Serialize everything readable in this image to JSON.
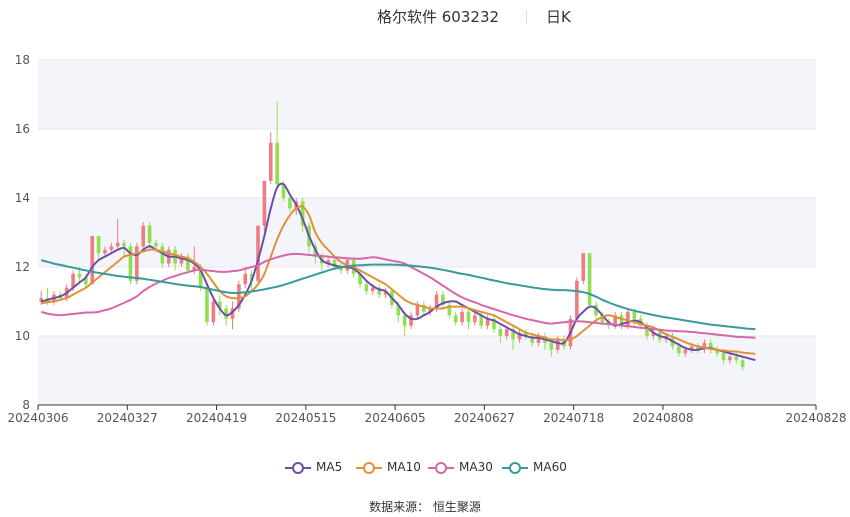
{
  "header": {
    "stock": "格尔软件 603232",
    "period": "日K"
  },
  "footer": {
    "source": "数据来源： 恒生聚源"
  },
  "legend": [
    {
      "name": "MA5",
      "color": "#6a4fa8"
    },
    {
      "name": "MA10",
      "color": "#e0913a"
    },
    {
      "name": "MA30",
      "color": "#d667aa"
    },
    {
      "name": "MA60",
      "color": "#3a9999"
    }
  ],
  "colors": {
    "up": "#f07c82",
    "down": "#8fe050",
    "band": "#f4f5fa"
  },
  "chart_data": {
    "type": "candlestick",
    "title": "格尔软件 603232",
    "subtitle": "日K",
    "ylim": [
      8,
      18
    ],
    "yticks": [
      8,
      10,
      12,
      14,
      16,
      18
    ],
    "xlim": [
      0,
      122
    ],
    "x_tick_labels": [
      {
        "label": "20240306",
        "index": 0
      },
      {
        "label": "20240327",
        "index": 14
      },
      {
        "label": "20240419",
        "index": 28
      },
      {
        "label": "20240515",
        "index": 42
      },
      {
        "label": "20240605",
        "index": 56
      },
      {
        "label": "20240627",
        "index": 70
      },
      {
        "label": "20240718",
        "index": 84
      },
      {
        "label": "20240808",
        "index": 98
      },
      {
        "label": "20240828",
        "index": 112
      }
    ],
    "candles": [
      [
        11.0,
        11.1,
        11.3,
        10.9
      ],
      [
        11.1,
        11.0,
        11.4,
        10.9
      ],
      [
        11.0,
        11.2,
        11.3,
        10.9
      ],
      [
        11.2,
        11.1,
        11.3,
        11.0
      ],
      [
        11.1,
        11.4,
        11.5,
        11.0
      ],
      [
        11.4,
        11.8,
        11.9,
        11.3
      ],
      [
        11.8,
        11.7,
        12.0,
        11.5
      ],
      [
        11.7,
        11.5,
        11.8,
        11.4
      ],
      [
        11.5,
        12.9,
        12.9,
        11.5
      ],
      [
        12.9,
        12.4,
        12.9,
        12.2
      ],
      [
        12.4,
        12.5,
        12.6,
        12.3
      ],
      [
        12.5,
        12.6,
        12.7,
        12.4
      ],
      [
        12.6,
        12.7,
        13.4,
        12.5
      ],
      [
        12.7,
        12.6,
        12.8,
        12.3
      ],
      [
        12.6,
        11.6,
        12.7,
        11.5
      ],
      [
        11.6,
        12.6,
        12.7,
        11.5
      ],
      [
        12.6,
        13.2,
        13.3,
        12.5
      ],
      [
        13.2,
        12.7,
        13.3,
        12.5
      ],
      [
        12.7,
        12.6,
        12.8,
        12.4
      ],
      [
        12.6,
        12.1,
        12.7,
        12.0
      ],
      [
        12.1,
        12.5,
        12.6,
        12.0
      ],
      [
        12.5,
        12.1,
        12.6,
        11.9
      ],
      [
        12.1,
        12.3,
        12.4,
        12.0
      ],
      [
        12.3,
        11.9,
        12.4,
        11.8
      ],
      [
        11.9,
        12.0,
        12.6,
        11.8
      ],
      [
        12.0,
        11.4,
        12.1,
        11.3
      ],
      [
        11.4,
        10.4,
        11.5,
        10.3
      ],
      [
        10.4,
        11.0,
        11.1,
        10.3
      ],
      [
        11.0,
        10.8,
        11.2,
        10.6
      ],
      [
        10.8,
        10.5,
        10.9,
        10.3
      ],
      [
        10.5,
        10.8,
        11.0,
        10.2
      ],
      [
        10.8,
        11.5,
        11.6,
        10.7
      ],
      [
        11.5,
        11.8,
        12.0,
        11.4
      ],
      [
        11.8,
        11.6,
        11.9,
        11.3
      ],
      [
        11.6,
        13.2,
        13.2,
        11.5
      ],
      [
        13.2,
        14.5,
        14.5,
        13.0
      ],
      [
        14.5,
        15.6,
        15.9,
        14.4
      ],
      [
        15.6,
        14.4,
        16.8,
        14.3
      ],
      [
        14.4,
        14.0,
        14.5,
        13.9
      ],
      [
        14.0,
        13.7,
        14.1,
        13.6
      ],
      [
        13.7,
        13.9,
        14.0,
        13.5
      ],
      [
        13.9,
        13.2,
        14.0,
        13.0
      ],
      [
        13.2,
        12.6,
        13.3,
        12.4
      ],
      [
        12.6,
        12.3,
        12.7,
        12.1
      ],
      [
        12.3,
        12.1,
        12.4,
        11.9
      ],
      [
        12.1,
        12.2,
        12.3,
        12.0
      ],
      [
        12.2,
        12.0,
        12.3,
        11.9
      ],
      [
        12.0,
        11.9,
        12.1,
        11.8
      ],
      [
        11.9,
        12.2,
        12.3,
        11.8
      ],
      [
        12.2,
        11.8,
        12.3,
        11.7
      ],
      [
        11.8,
        11.5,
        11.9,
        11.4
      ],
      [
        11.5,
        11.3,
        11.6,
        11.2
      ],
      [
        11.3,
        11.4,
        11.5,
        11.2
      ],
      [
        11.4,
        11.2,
        11.5,
        11.1
      ],
      [
        11.2,
        11.3,
        11.4,
        11.1
      ],
      [
        11.3,
        10.9,
        11.4,
        10.8
      ],
      [
        10.9,
        10.6,
        11.0,
        10.4
      ],
      [
        10.6,
        10.3,
        10.7,
        10.0
      ],
      [
        10.3,
        10.6,
        10.7,
        10.2
      ],
      [
        10.6,
        10.9,
        11.0,
        10.5
      ],
      [
        10.9,
        10.7,
        11.0,
        10.6
      ],
      [
        10.7,
        10.8,
        10.9,
        10.6
      ],
      [
        10.8,
        11.2,
        11.3,
        10.7
      ],
      [
        11.2,
        10.9,
        11.3,
        10.8
      ],
      [
        10.9,
        10.6,
        11.0,
        10.5
      ],
      [
        10.6,
        10.4,
        10.7,
        10.3
      ],
      [
        10.4,
        10.7,
        10.8,
        10.3
      ],
      [
        10.7,
        10.4,
        10.8,
        10.2
      ],
      [
        10.4,
        10.6,
        10.7,
        10.3
      ],
      [
        10.6,
        10.3,
        10.7,
        10.2
      ],
      [
        10.3,
        10.5,
        10.6,
        10.2
      ],
      [
        10.5,
        10.2,
        10.6,
        10.1
      ],
      [
        10.2,
        10.0,
        10.3,
        9.8
      ],
      [
        10.0,
        10.2,
        10.3,
        9.9
      ],
      [
        10.2,
        9.9,
        10.3,
        9.6
      ],
      [
        9.9,
        10.1,
        10.2,
        9.8
      ],
      [
        10.1,
        10.0,
        10.2,
        9.9
      ],
      [
        10.0,
        9.8,
        10.1,
        9.7
      ],
      [
        9.8,
        10.0,
        10.1,
        9.7
      ],
      [
        10.0,
        9.8,
        10.1,
        9.6
      ],
      [
        9.8,
        9.6,
        9.9,
        9.4
      ],
      [
        9.6,
        9.9,
        10.0,
        9.5
      ],
      [
        9.9,
        9.7,
        10.0,
        9.6
      ],
      [
        9.7,
        10.5,
        10.6,
        9.6
      ],
      [
        10.5,
        11.6,
        11.7,
        10.4
      ],
      [
        11.6,
        12.4,
        12.4,
        11.5
      ],
      [
        12.4,
        10.9,
        12.4,
        10.8
      ],
      [
        10.9,
        10.6,
        11.0,
        10.5
      ],
      [
        10.6,
        10.4,
        10.7,
        10.3
      ],
      [
        10.4,
        10.3,
        10.5,
        10.2
      ],
      [
        10.3,
        10.6,
        10.7,
        10.2
      ],
      [
        10.6,
        10.3,
        10.7,
        10.2
      ],
      [
        10.3,
        10.7,
        10.8,
        10.2
      ],
      [
        10.7,
        10.5,
        10.8,
        10.3
      ],
      [
        10.5,
        10.3,
        10.6,
        10.2
      ],
      [
        10.3,
        10.0,
        10.4,
        9.9
      ],
      [
        10.0,
        10.1,
        10.2,
        9.9
      ],
      [
        10.1,
        9.9,
        10.2,
        9.8
      ],
      [
        9.9,
        10.0,
        10.1,
        9.8
      ],
      [
        10.0,
        9.7,
        10.1,
        9.6
      ],
      [
        9.7,
        9.5,
        9.8,
        9.4
      ],
      [
        9.5,
        9.6,
        9.7,
        9.4
      ],
      [
        9.6,
        9.7,
        9.8,
        9.5
      ],
      [
        9.7,
        9.6,
        9.8,
        9.5
      ],
      [
        9.6,
        9.8,
        9.9,
        9.5
      ],
      [
        9.8,
        9.6,
        9.9,
        9.5
      ],
      [
        9.6,
        9.5,
        9.7,
        9.4
      ],
      [
        9.5,
        9.3,
        9.6,
        9.2
      ],
      [
        9.3,
        9.4,
        9.5,
        9.2
      ],
      [
        9.4,
        9.3,
        9.5,
        9.2
      ],
      [
        9.3,
        9.1,
        9.4,
        9.0
      ]
    ],
    "series": [
      {
        "name": "MA5",
        "values": [
          11.0,
          11.05,
          11.1,
          11.15,
          11.25,
          11.4,
          11.55,
          11.7,
          12.0,
          12.2,
          12.3,
          12.4,
          12.5,
          12.55,
          12.4,
          12.35,
          12.5,
          12.6,
          12.5,
          12.4,
          12.3,
          12.3,
          12.25,
          12.2,
          12.1,
          11.9,
          11.5,
          11.1,
          10.8,
          10.6,
          10.7,
          10.9,
          11.2,
          11.6,
          12.2,
          12.9,
          13.7,
          14.3,
          14.4,
          14.1,
          13.8,
          13.4,
          12.9,
          12.5,
          12.2,
          12.1,
          12.05,
          12.0,
          12.0,
          11.95,
          11.8,
          11.6,
          11.45,
          11.35,
          11.3,
          11.1,
          10.9,
          10.65,
          10.5,
          10.5,
          10.6,
          10.7,
          10.85,
          10.95,
          11.0,
          11.0,
          10.9,
          10.8,
          10.7,
          10.6,
          10.5,
          10.45,
          10.35,
          10.25,
          10.15,
          10.05,
          10.0,
          9.95,
          9.95,
          9.9,
          9.85,
          9.8,
          9.8,
          10.1,
          10.5,
          10.7,
          10.85,
          10.8,
          10.6,
          10.4,
          10.3,
          10.35,
          10.4,
          10.45,
          10.4,
          10.25,
          10.1,
          10.0,
          9.95,
          9.85,
          9.75,
          9.65,
          9.6,
          9.6,
          9.65,
          9.65,
          9.6,
          9.55,
          9.5,
          9.45,
          9.4,
          9.35,
          9.3
        ]
      },
      {
        "name": "MA10",
        "values": [
          10.95,
          10.98,
          11.0,
          11.05,
          11.1,
          11.2,
          11.3,
          11.4,
          11.55,
          11.7,
          11.85,
          12.0,
          12.15,
          12.3,
          12.35,
          12.4,
          12.45,
          12.5,
          12.5,
          12.45,
          12.4,
          12.35,
          12.3,
          12.25,
          12.15,
          12.0,
          11.8,
          11.55,
          11.3,
          11.15,
          11.1,
          11.1,
          11.15,
          11.3,
          11.5,
          11.8,
          12.3,
          12.8,
          13.2,
          13.5,
          13.7,
          13.75,
          13.5,
          13.0,
          12.7,
          12.5,
          12.3,
          12.15,
          12.05,
          12.0,
          11.9,
          11.8,
          11.7,
          11.6,
          11.5,
          11.35,
          11.2,
          11.05,
          10.95,
          10.9,
          10.85,
          10.8,
          10.8,
          10.8,
          10.85,
          10.85,
          10.85,
          10.8,
          10.75,
          10.7,
          10.65,
          10.6,
          10.5,
          10.4,
          10.3,
          10.2,
          10.1,
          10.05,
          10.0,
          9.95,
          9.9,
          9.9,
          9.88,
          9.9,
          10.0,
          10.15,
          10.3,
          10.45,
          10.55,
          10.6,
          10.55,
          10.5,
          10.45,
          10.4,
          10.35,
          10.3,
          10.25,
          10.15,
          10.05,
          9.98,
          9.9,
          9.82,
          9.75,
          9.7,
          9.66,
          9.63,
          9.6,
          9.58,
          9.56,
          9.55,
          9.52,
          9.5,
          9.48
        ]
      },
      {
        "name": "MA30",
        "values": [
          10.7,
          10.65,
          10.62,
          10.6,
          10.62,
          10.64,
          10.66,
          10.68,
          10.68,
          10.7,
          10.75,
          10.8,
          10.88,
          10.96,
          11.05,
          11.15,
          11.3,
          11.42,
          11.52,
          11.6,
          11.68,
          11.74,
          11.8,
          11.85,
          11.9,
          11.92,
          11.9,
          11.88,
          11.86,
          11.86,
          11.88,
          11.9,
          11.95,
          12.0,
          12.05,
          12.15,
          12.22,
          12.28,
          12.33,
          12.37,
          12.38,
          12.37,
          12.35,
          12.33,
          12.32,
          12.3,
          12.28,
          12.27,
          12.25,
          12.24,
          12.24,
          12.26,
          12.28,
          12.26,
          12.22,
          12.18,
          12.15,
          12.1,
          12.0,
          11.9,
          11.8,
          11.7,
          11.58,
          11.46,
          11.34,
          11.22,
          11.12,
          11.04,
          10.98,
          10.9,
          10.84,
          10.78,
          10.72,
          10.66,
          10.6,
          10.55,
          10.5,
          10.46,
          10.42,
          10.38,
          10.36,
          10.38,
          10.4,
          10.42,
          10.43,
          10.42,
          10.4,
          10.38,
          10.36,
          10.35,
          10.33,
          10.3,
          10.28,
          10.26,
          10.24,
          10.22,
          10.2,
          10.18,
          10.16,
          10.15,
          10.14,
          10.13,
          10.12,
          10.1,
          10.08,
          10.06,
          10.04,
          10.02,
          10.0,
          9.98,
          9.97,
          9.96,
          9.95
        ]
      },
      {
        "name": "MA60",
        "values": [
          12.2,
          12.15,
          12.1,
          12.06,
          12.02,
          11.98,
          11.94,
          11.9,
          11.86,
          11.83,
          11.8,
          11.77,
          11.74,
          11.72,
          11.7,
          11.68,
          11.66,
          11.63,
          11.6,
          11.57,
          11.54,
          11.51,
          11.48,
          11.46,
          11.44,
          11.42,
          11.38,
          11.34,
          11.3,
          11.27,
          11.25,
          11.25,
          11.27,
          11.29,
          11.32,
          11.35,
          11.39,
          11.43,
          11.48,
          11.54,
          11.6,
          11.66,
          11.72,
          11.78,
          11.84,
          11.9,
          11.95,
          11.99,
          12.02,
          12.04,
          12.05,
          12.06,
          12.07,
          12.07,
          12.07,
          12.07,
          12.06,
          12.05,
          12.04,
          12.02,
          12.0,
          11.98,
          11.95,
          11.92,
          11.88,
          11.84,
          11.8,
          11.77,
          11.73,
          11.69,
          11.65,
          11.61,
          11.57,
          11.53,
          11.5,
          11.47,
          11.44,
          11.41,
          11.38,
          11.36,
          11.34,
          11.33,
          11.33,
          11.32,
          11.3,
          11.27,
          11.22,
          11.14,
          11.05,
          10.97,
          10.9,
          10.84,
          10.78,
          10.73,
          10.69,
          10.65,
          10.61,
          10.57,
          10.54,
          10.51,
          10.48,
          10.45,
          10.42,
          10.39,
          10.36,
          10.33,
          10.31,
          10.29,
          10.27,
          10.25,
          10.23,
          10.21,
          10.2
        ]
      }
    ],
    "source": "数据来源： 恒生聚源"
  }
}
